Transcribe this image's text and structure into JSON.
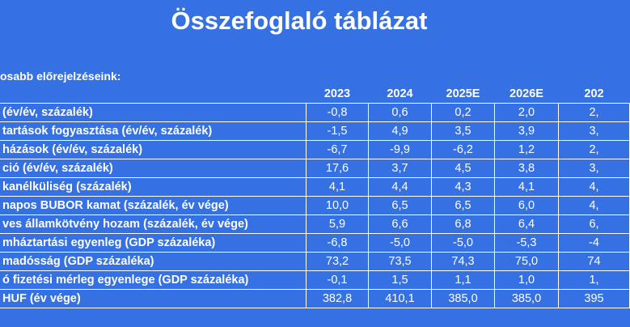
{
  "header": {
    "title": "Összefoglaló táblázat",
    "subtitle": "osabb előrejelzéseink:"
  },
  "table": {
    "columns": [
      "2023",
      "2024",
      "2025E",
      "2026E",
      "202"
    ],
    "rows": [
      [
        "(év/év, százalék)",
        "-0,8",
        "0,6",
        "0,2",
        "2,0",
        "2,"
      ],
      [
        "tartások fogyasztása (év/év, százalék)",
        "-1,5",
        "4,9",
        "3,5",
        "3,9",
        "3,"
      ],
      [
        "házások (év/év, százalék)",
        "-6,7",
        "-9,9",
        "-6,2",
        "1,2",
        "2,"
      ],
      [
        "ció (év/év, százalék)",
        "17,6",
        "3,7",
        "4,5",
        "3,8",
        "3,"
      ],
      [
        "kanélküliség (százalék)",
        "4,1",
        "4,4",
        "4,3",
        "4,1",
        "4,"
      ],
      [
        "napos BUBOR kamat (százalék, év vége)",
        "10,0",
        "6,5",
        "6,5",
        "6,0",
        "4,"
      ],
      [
        "ves államkötvény hozam (százalék, év vége)",
        "5,9",
        "6,6",
        "6,8",
        "6,4",
        "6,"
      ],
      [
        "mháztartási egyenleg (GDP százaléka)",
        "-6,8",
        "-5,0",
        "-5,0",
        "-5,3",
        "-4"
      ],
      [
        "madósság (GDP százaléka)",
        "73,2",
        "73,5",
        "74,3",
        "75,0",
        "74"
      ],
      [
        "ó fizetési mérleg egyenlege (GDP százaléka)",
        "-0,1",
        "1,5",
        "1,1",
        "1,0",
        "1,"
      ],
      [
        "HUF (év vége)",
        "382,8",
        "410,1",
        "385,0",
        "385,0",
        "395"
      ]
    ]
  }
}
